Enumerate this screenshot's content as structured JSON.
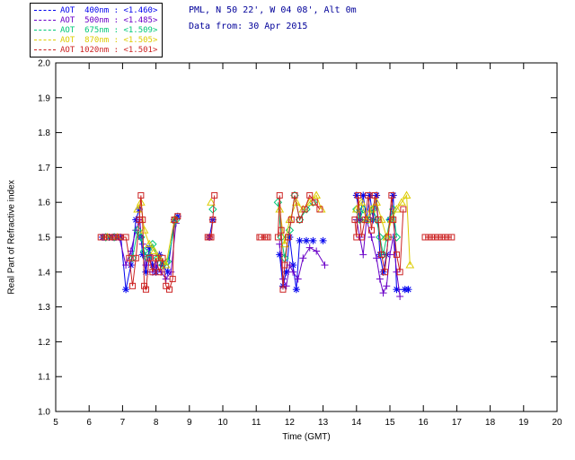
{
  "header": {
    "location_line": "PML, N 50 22', W 04 08', Alt 0m",
    "data_line": "Data from: 30 Apr 2015",
    "color": "#000099"
  },
  "chart_data": {
    "type": "line",
    "title": "",
    "xlabel": "Time (GMT)",
    "ylabel": "Real Part of Refractive index",
    "xlim": [
      5,
      20
    ],
    "ylim": [
      1.0,
      2.0
    ],
    "xticks": [
      5,
      6,
      7,
      8,
      9,
      10,
      11,
      12,
      13,
      14,
      15,
      16,
      17,
      18,
      19,
      20
    ],
    "yticks": [
      1.0,
      1.1,
      1.2,
      1.3,
      1.4,
      1.5,
      1.6,
      1.7,
      1.8,
      1.9,
      2.0
    ],
    "grid": false,
    "legend_position": "top-left",
    "gap_threshold": 0.28,
    "series": [
      {
        "id": "w400",
        "name": "AOT 400nm",
        "legend_label": "AOT  400nm : <1.460>",
        "mean_value": "<1.460>",
        "color": "#0000ee",
        "marker": "asterisk",
        "points": [
          [
            6.4,
            1.5
          ],
          [
            6.6,
            1.5
          ],
          [
            6.8,
            1.5
          ],
          [
            6.95,
            1.5
          ],
          [
            7.1,
            1.35
          ],
          [
            7.25,
            1.42
          ],
          [
            7.4,
            1.55
          ],
          [
            7.5,
            1.58
          ],
          [
            7.55,
            1.5
          ],
          [
            7.6,
            1.45
          ],
          [
            7.7,
            1.4
          ],
          [
            7.8,
            1.47
          ],
          [
            7.9,
            1.42
          ],
          [
            8.0,
            1.4
          ],
          [
            8.1,
            1.45
          ],
          [
            8.2,
            1.42
          ],
          [
            8.35,
            1.4
          ],
          [
            8.55,
            1.55
          ],
          [
            8.65,
            1.56
          ],
          [
            9.6,
            1.5
          ],
          [
            9.7,
            1.55
          ],
          [
            11.7,
            1.45
          ],
          [
            11.8,
            1.36
          ],
          [
            11.9,
            1.4
          ],
          [
            12.0,
            1.5
          ],
          [
            12.1,
            1.42
          ],
          [
            12.2,
            1.35
          ],
          [
            12.3,
            1.49
          ],
          [
            12.5,
            1.49
          ],
          [
            12.7,
            1.49
          ],
          [
            13.0,
            1.49
          ],
          [
            14.0,
            1.62
          ],
          [
            14.1,
            1.55
          ],
          [
            14.2,
            1.62
          ],
          [
            14.3,
            1.55
          ],
          [
            14.4,
            1.62
          ],
          [
            14.5,
            1.55
          ],
          [
            14.6,
            1.62
          ],
          [
            14.7,
            1.45
          ],
          [
            14.8,
            1.4
          ],
          [
            14.9,
            1.45
          ],
          [
            15.0,
            1.55
          ],
          [
            15.1,
            1.62
          ],
          [
            15.2,
            1.35
          ],
          [
            15.45,
            1.35
          ],
          [
            15.55,
            1.35
          ]
        ]
      },
      {
        "id": "w500",
        "name": "AOT 500nm",
        "legend_label": "AOT  500nm : <1.485>",
        "mean_value": "<1.485>",
        "color": "#6a00c8",
        "marker": "plus",
        "points": [
          [
            6.45,
            1.5
          ],
          [
            6.7,
            1.5
          ],
          [
            6.9,
            1.5
          ],
          [
            7.1,
            1.42
          ],
          [
            7.25,
            1.46
          ],
          [
            7.4,
            1.52
          ],
          [
            7.5,
            1.55
          ],
          [
            7.6,
            1.48
          ],
          [
            7.7,
            1.42
          ],
          [
            7.8,
            1.45
          ],
          [
            7.9,
            1.4
          ],
          [
            8.0,
            1.42
          ],
          [
            8.15,
            1.4
          ],
          [
            8.3,
            1.38
          ],
          [
            8.45,
            1.4
          ],
          [
            8.6,
            1.54
          ],
          [
            9.6,
            1.5
          ],
          [
            11.7,
            1.48
          ],
          [
            11.8,
            1.38
          ],
          [
            11.9,
            1.36
          ],
          [
            12.0,
            1.42
          ],
          [
            12.1,
            1.4
          ],
          [
            12.25,
            1.38
          ],
          [
            12.4,
            1.44
          ],
          [
            12.6,
            1.47
          ],
          [
            12.8,
            1.46
          ],
          [
            13.05,
            1.42
          ],
          [
            14.0,
            1.55
          ],
          [
            14.1,
            1.5
          ],
          [
            14.2,
            1.45
          ],
          [
            14.3,
            1.55
          ],
          [
            14.45,
            1.5
          ],
          [
            14.6,
            1.44
          ],
          [
            14.7,
            1.38
          ],
          [
            14.8,
            1.34
          ],
          [
            14.9,
            1.36
          ],
          [
            15.0,
            1.45
          ],
          [
            15.1,
            1.5
          ],
          [
            15.2,
            1.4
          ],
          [
            15.3,
            1.33
          ]
        ]
      },
      {
        "id": "w675",
        "name": "AOT 675nm",
        "legend_label": "AOT  675nm : <1.509>",
        "mean_value": "<1.509>",
        "color": "#00c878",
        "marker": "diamond",
        "points": [
          [
            6.5,
            1.5
          ],
          [
            6.75,
            1.5
          ],
          [
            7.3,
            1.44
          ],
          [
            7.45,
            1.52
          ],
          [
            7.55,
            1.5
          ],
          [
            7.65,
            1.46
          ],
          [
            7.75,
            1.44
          ],
          [
            7.9,
            1.48
          ],
          [
            8.05,
            1.44
          ],
          [
            8.2,
            1.42
          ],
          [
            8.35,
            1.43
          ],
          [
            8.6,
            1.55
          ],
          [
            9.7,
            1.58
          ],
          [
            11.65,
            1.6
          ],
          [
            11.75,
            1.5
          ],
          [
            11.85,
            1.44
          ],
          [
            12.0,
            1.52
          ],
          [
            12.15,
            1.62
          ],
          [
            12.3,
            1.55
          ],
          [
            12.5,
            1.58
          ],
          [
            12.7,
            1.6
          ],
          [
            14.0,
            1.58
          ],
          [
            14.1,
            1.55
          ],
          [
            14.2,
            1.58
          ],
          [
            14.35,
            1.55
          ],
          [
            14.5,
            1.58
          ],
          [
            14.6,
            1.55
          ],
          [
            14.7,
            1.5
          ],
          [
            14.8,
            1.45
          ],
          [
            14.9,
            1.5
          ],
          [
            15.0,
            1.55
          ],
          [
            15.1,
            1.58
          ],
          [
            15.2,
            1.5
          ]
        ]
      },
      {
        "id": "w870",
        "name": "AOT 870nm",
        "legend_label": "AOT  870nm : <1.505>",
        "mean_value": "<1.505>",
        "color": "#ddcc00",
        "marker": "triangle",
        "points": [
          [
            6.55,
            1.5
          ],
          [
            6.85,
            1.5
          ],
          [
            7.45,
            1.58
          ],
          [
            7.55,
            1.6
          ],
          [
            7.65,
            1.52
          ],
          [
            7.8,
            1.48
          ],
          [
            7.95,
            1.46
          ],
          [
            8.1,
            1.44
          ],
          [
            8.3,
            1.42
          ],
          [
            8.55,
            1.55
          ],
          [
            9.65,
            1.6
          ],
          [
            11.7,
            1.58
          ],
          [
            11.85,
            1.48
          ],
          [
            12.0,
            1.55
          ],
          [
            12.2,
            1.6
          ],
          [
            12.4,
            1.58
          ],
          [
            12.6,
            1.6
          ],
          [
            12.8,
            1.62
          ],
          [
            12.95,
            1.58
          ],
          [
            14.0,
            1.58
          ],
          [
            14.15,
            1.6
          ],
          [
            14.3,
            1.55
          ],
          [
            14.45,
            1.58
          ],
          [
            14.6,
            1.6
          ],
          [
            14.75,
            1.55
          ],
          [
            14.9,
            1.5
          ],
          [
            15.05,
            1.55
          ],
          [
            15.2,
            1.58
          ],
          [
            15.35,
            1.6
          ],
          [
            15.5,
            1.62
          ],
          [
            15.6,
            1.42
          ]
        ]
      },
      {
        "id": "w1020",
        "name": "AOT 1020nm",
        "legend_label": "AOT 1020nm : <1.501>",
        "mean_value": "<1.501>",
        "color": "#cc2222",
        "marker": "square",
        "points": [
          [
            6.35,
            1.5
          ],
          [
            6.45,
            1.5
          ],
          [
            6.55,
            1.5
          ],
          [
            6.6,
            1.5
          ],
          [
            6.7,
            1.5
          ],
          [
            6.8,
            1.5
          ],
          [
            6.9,
            1.5
          ],
          [
            6.95,
            1.5
          ],
          [
            7.1,
            1.5
          ],
          [
            7.2,
            1.44
          ],
          [
            7.3,
            1.36
          ],
          [
            7.4,
            1.44
          ],
          [
            7.5,
            1.55
          ],
          [
            7.55,
            1.62
          ],
          [
            7.6,
            1.55
          ],
          [
            7.65,
            1.36
          ],
          [
            7.7,
            1.35
          ],
          [
            7.8,
            1.44
          ],
          [
            7.9,
            1.4
          ],
          [
            8.0,
            1.44
          ],
          [
            8.1,
            1.4
          ],
          [
            8.2,
            1.44
          ],
          [
            8.3,
            1.36
          ],
          [
            8.4,
            1.35
          ],
          [
            8.5,
            1.38
          ],
          [
            8.55,
            1.55
          ],
          [
            8.65,
            1.56
          ],
          [
            9.55,
            1.5
          ],
          [
            9.6,
            1.5
          ],
          [
            9.65,
            1.5
          ],
          [
            9.7,
            1.55
          ],
          [
            9.75,
            1.62
          ],
          [
            11.1,
            1.5
          ],
          [
            11.15,
            1.5
          ],
          [
            11.25,
            1.5
          ],
          [
            11.3,
            1.5
          ],
          [
            11.35,
            1.5
          ],
          [
            11.65,
            1.5
          ],
          [
            11.7,
            1.62
          ],
          [
            11.75,
            1.52
          ],
          [
            11.8,
            1.35
          ],
          [
            11.85,
            1.42
          ],
          [
            11.95,
            1.5
          ],
          [
            12.05,
            1.55
          ],
          [
            12.15,
            1.62
          ],
          [
            12.3,
            1.55
          ],
          [
            12.45,
            1.58
          ],
          [
            12.6,
            1.62
          ],
          [
            12.75,
            1.6
          ],
          [
            12.9,
            1.58
          ],
          [
            13.95,
            1.55
          ],
          [
            14.0,
            1.5
          ],
          [
            14.05,
            1.62
          ],
          [
            14.15,
            1.5
          ],
          [
            14.25,
            1.55
          ],
          [
            14.35,
            1.62
          ],
          [
            14.45,
            1.52
          ],
          [
            14.55,
            1.62
          ],
          [
            14.65,
            1.55
          ],
          [
            14.75,
            1.45
          ],
          [
            14.85,
            1.4
          ],
          [
            14.95,
            1.5
          ],
          [
            15.05,
            1.62
          ],
          [
            15.1,
            1.55
          ],
          [
            15.2,
            1.45
          ],
          [
            15.3,
            1.4
          ],
          [
            15.4,
            1.58
          ],
          [
            16.05,
            1.5
          ],
          [
            16.15,
            1.5
          ],
          [
            16.25,
            1.5
          ],
          [
            16.35,
            1.5
          ],
          [
            16.45,
            1.5
          ],
          [
            16.55,
            1.5
          ],
          [
            16.65,
            1.5
          ],
          [
            16.75,
            1.5
          ],
          [
            16.85,
            1.5
          ]
        ]
      }
    ]
  }
}
